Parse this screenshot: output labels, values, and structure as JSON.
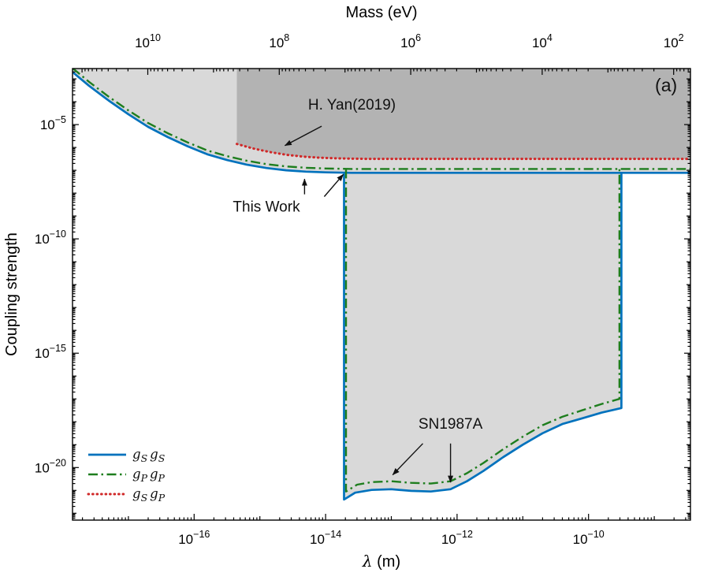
{
  "chart_data": {
    "type": "line",
    "title": "",
    "xlabel_symbol": "λ",
    "xlabel_unit": " (m)",
    "top_xlabel": "Mass (eV)",
    "ylabel": "Coupling strength",
    "panel_label": "(a)",
    "x_axis": {
      "scale": "log",
      "min_exp": -17.85,
      "max_exp": -8.45,
      "tick_base": "10",
      "labeled_exps": [
        -16,
        -14,
        -12,
        -10
      ]
    },
    "top_axis": {
      "scale": "log",
      "tick_base": "10",
      "labeled_exps": [
        10,
        8,
        6,
        4,
        2
      ],
      "log_const": -6.705
    },
    "y_axis": {
      "scale": "log",
      "min_exp": -22.3,
      "max_exp": -2.55,
      "tick_base": "10",
      "labeled_exps": [
        -5,
        -10,
        -15,
        -20
      ]
    },
    "colors": {
      "light_region": "#d9d9d9",
      "dark_region": "#b3b3b3",
      "blue": "#0072bd",
      "green": "#1e7e1e",
      "red": "#d02828",
      "annotation": "#111111"
    },
    "series": [
      {
        "name": "gSgS",
        "label": [
          [
            "g",
            "S"
          ],
          [
            "g",
            "S"
          ]
        ],
        "color": "#0072bd",
        "dash": "solid",
        "width": 2.7,
        "main": [
          [
            -17.85,
            -2.7
          ],
          [
            -17.6,
            -3.3
          ],
          [
            -17.3,
            -3.95
          ],
          [
            -17.0,
            -4.55
          ],
          [
            -16.7,
            -5.1
          ],
          [
            -16.4,
            -5.55
          ],
          [
            -16.1,
            -5.95
          ],
          [
            -15.8,
            -6.3
          ],
          [
            -15.5,
            -6.55
          ],
          [
            -15.2,
            -6.75
          ],
          [
            -14.9,
            -6.9
          ],
          [
            -14.6,
            -7.0
          ],
          [
            -14.3,
            -7.06
          ],
          [
            -14.0,
            -7.09
          ],
          [
            -13.6,
            -7.11
          ],
          [
            -8.45,
            -7.11
          ]
        ],
        "sn": [
          [
            -13.72,
            -7.11
          ],
          [
            -13.72,
            -21.4
          ],
          [
            -13.55,
            -21.1
          ],
          [
            -13.3,
            -20.98
          ],
          [
            -13.0,
            -20.95
          ],
          [
            -12.7,
            -21.02
          ],
          [
            -12.4,
            -21.05
          ],
          [
            -12.1,
            -20.95
          ],
          [
            -11.85,
            -20.6
          ],
          [
            -11.6,
            -20.15
          ],
          [
            -11.3,
            -19.55
          ],
          [
            -11.0,
            -19.0
          ],
          [
            -10.7,
            -18.5
          ],
          [
            -10.4,
            -18.1
          ],
          [
            -10.1,
            -17.85
          ],
          [
            -9.8,
            -17.6
          ],
          [
            -9.5,
            -17.4
          ],
          [
            -9.5,
            -7.11
          ]
        ]
      },
      {
        "name": "gPgP",
        "label": [
          [
            "g",
            "P"
          ],
          [
            "g",
            "P"
          ]
        ],
        "color": "#1e7e1e",
        "dash": "dashdot",
        "width": 2.4,
        "main": [
          [
            -17.85,
            -2.53
          ],
          [
            -17.6,
            -3.13
          ],
          [
            -17.3,
            -3.78
          ],
          [
            -17.0,
            -4.38
          ],
          [
            -16.7,
            -4.93
          ],
          [
            -16.4,
            -5.38
          ],
          [
            -16.1,
            -5.78
          ],
          [
            -15.8,
            -6.13
          ],
          [
            -15.5,
            -6.38
          ],
          [
            -15.2,
            -6.58
          ],
          [
            -14.9,
            -6.73
          ],
          [
            -14.6,
            -6.83
          ],
          [
            -14.3,
            -6.89
          ],
          [
            -14.0,
            -6.92
          ],
          [
            -13.6,
            -6.94
          ],
          [
            -8.45,
            -6.94
          ]
        ],
        "sn": [
          [
            -13.69,
            -6.94
          ],
          [
            -13.69,
            -21.05
          ],
          [
            -13.52,
            -20.75
          ],
          [
            -13.3,
            -20.64
          ],
          [
            -13.0,
            -20.6
          ],
          [
            -12.7,
            -20.67
          ],
          [
            -12.4,
            -20.7
          ],
          [
            -12.1,
            -20.6
          ],
          [
            -11.85,
            -20.25
          ],
          [
            -11.6,
            -19.8
          ],
          [
            -11.3,
            -19.2
          ],
          [
            -11.0,
            -18.65
          ],
          [
            -10.7,
            -18.15
          ],
          [
            -10.4,
            -17.78
          ],
          [
            -10.1,
            -17.5
          ],
          [
            -9.8,
            -17.22
          ],
          [
            -9.53,
            -17.0
          ],
          [
            -9.53,
            -6.94
          ]
        ]
      },
      {
        "name": "gSgP",
        "label": [
          [
            "g",
            "S"
          ],
          [
            "g",
            "P"
          ]
        ],
        "color": "#d02828",
        "dash": "dotted",
        "width": 3,
        "main": [
          [
            -15.35,
            -5.85
          ],
          [
            -15.1,
            -6.05
          ],
          [
            -14.85,
            -6.2
          ],
          [
            -14.6,
            -6.32
          ],
          [
            -14.35,
            -6.4
          ],
          [
            -14.1,
            -6.45
          ],
          [
            -13.8,
            -6.48
          ],
          [
            -13.4,
            -6.5
          ],
          [
            -8.45,
            -6.5
          ]
        ]
      }
    ],
    "annotations": [
      {
        "text": "H. Yan(2019)",
        "x": -13.6,
        "y": -4.35,
        "size": 19,
        "arrows": [
          {
            "from": [
              -14.06,
              -5.07
            ],
            "to": [
              -14.62,
              -5.92
            ]
          }
        ]
      },
      {
        "text": "This Work",
        "x": -14.9,
        "y": -8.8,
        "size": 19,
        "arrows": [
          {
            "from": [
              -14.32,
              -8.05
            ],
            "to": [
              -14.32,
              -7.38
            ]
          },
          {
            "from": [
              -14.02,
              -8.15
            ],
            "to": [
              -13.73,
              -7.18
            ]
          }
        ]
      },
      {
        "text": "SN1987A",
        "x": -12.1,
        "y": -18.3,
        "size": 19,
        "arrows": [
          {
            "from": [
              -12.52,
              -18.95
            ],
            "to": [
              -12.98,
              -20.32
            ]
          },
          {
            "from": [
              -12.1,
              -18.95
            ],
            "to": [
              -12.1,
              -20.65
            ]
          }
        ]
      },
      {
        "text": "(a)",
        "x": -8.82,
        "y": -3.55,
        "size": 23,
        "arrows": []
      }
    ],
    "legend": {
      "position": "bottom-left",
      "entries": [
        "gSgS",
        "gPgP",
        "gSgP"
      ]
    }
  }
}
